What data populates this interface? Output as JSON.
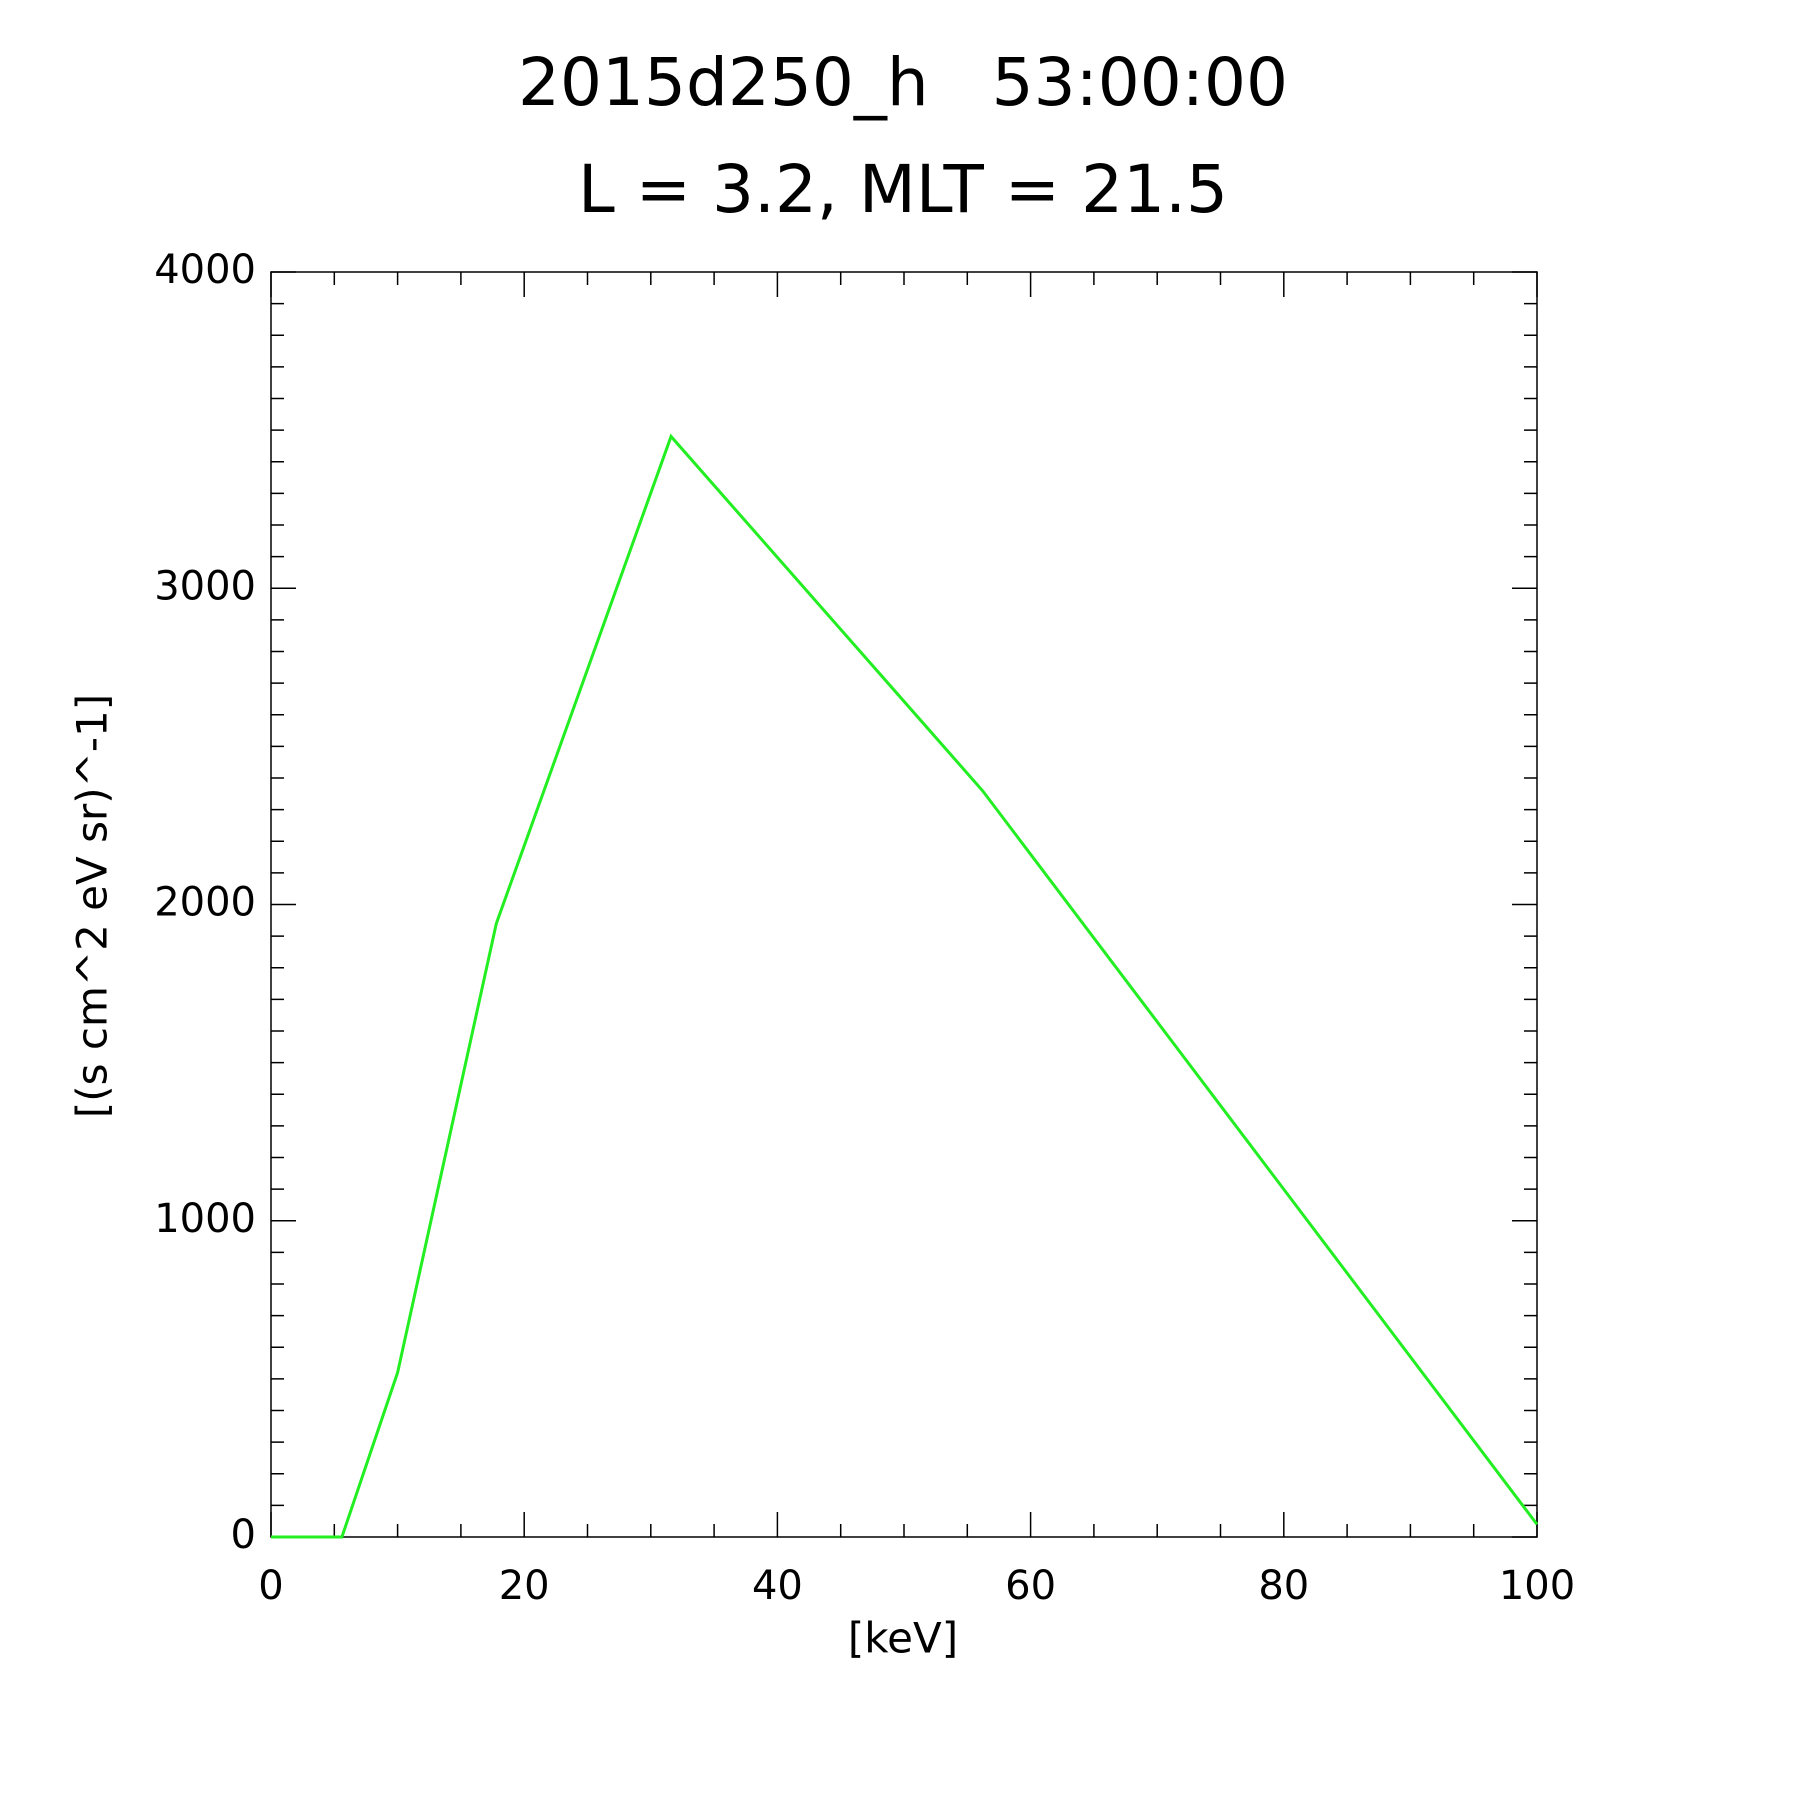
{
  "chart_data": {
    "type": "line",
    "title": "2015d250_h   53:00:00",
    "subtitle": "L = 3.2, MLT = 21.5",
    "x_label": "[keV]",
    "y_label": "[(s cm^2 eV sr)^-1]",
    "x": [
      0,
      5.6,
      10,
      17.8,
      31.6,
      56.2,
      100
    ],
    "series": [
      {
        "color": "#22ee22",
        "values": [
          0,
          0,
          520,
          1940,
          3480,
          2360,
          40
        ]
      }
    ],
    "xlim": [
      0,
      100
    ],
    "ylim": [
      0,
      4000
    ],
    "xticks": [
      0,
      20,
      40,
      60,
      80,
      100
    ],
    "yticks": [
      0,
      1000,
      2000,
      3000,
      4000
    ],
    "xminorticks": [
      5,
      10,
      15,
      25,
      30,
      35,
      45,
      50,
      55,
      65,
      70,
      75,
      85,
      90,
      95
    ],
    "yminorticks": [
      100,
      200,
      300,
      400,
      500,
      600,
      700,
      800,
      900,
      1100,
      1200,
      1300,
      1400,
      1500,
      1600,
      1700,
      1800,
      1900,
      2100,
      2200,
      2300,
      2400,
      2500,
      2600,
      2700,
      2800,
      2900,
      3100,
      3200,
      3300,
      3400,
      3500,
      3600,
      3700,
      3800,
      3900
    ],
    "grid": false
  }
}
